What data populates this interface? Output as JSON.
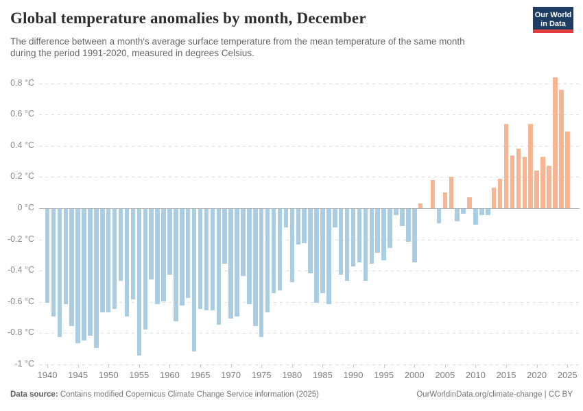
{
  "header": {
    "title": "Global temperature anomalies by month, December",
    "subtitle": "The difference between a month's average surface temperature from the mean temperature of the same month\nduring the period 1991-2020, measured in degrees Celsius.",
    "logo": {
      "line1": "Our World",
      "line2": "in Data",
      "bg_color": "#1d3d63",
      "stripe_color": "#e23b3b"
    }
  },
  "chart_data": {
    "type": "bar",
    "title": "Global temperature anomalies by month, December",
    "xlabel": "",
    "ylabel": "degrees Celsius",
    "x_start": 1940,
    "x_end": 2025,
    "categories": [
      1940,
      1941,
      1942,
      1943,
      1944,
      1945,
      1946,
      1947,
      1948,
      1949,
      1950,
      1951,
      1952,
      1953,
      1954,
      1955,
      1956,
      1957,
      1958,
      1959,
      1960,
      1961,
      1962,
      1963,
      1964,
      1965,
      1966,
      1967,
      1968,
      1969,
      1970,
      1971,
      1972,
      1973,
      1974,
      1975,
      1976,
      1977,
      1978,
      1979,
      1980,
      1981,
      1982,
      1983,
      1984,
      1985,
      1986,
      1987,
      1988,
      1989,
      1990,
      1991,
      1992,
      1993,
      1994,
      1995,
      1996,
      1997,
      1998,
      1999,
      2000,
      2001,
      2002,
      2003,
      2004,
      2005,
      2006,
      2007,
      2008,
      2009,
      2010,
      2011,
      2012,
      2013,
      2014,
      2015,
      2016,
      2017,
      2018,
      2019,
      2020,
      2021,
      2022,
      2023,
      2024,
      2025
    ],
    "values": [
      -0.6,
      -0.69,
      -0.82,
      -0.61,
      -0.75,
      -0.86,
      -0.84,
      -0.81,
      -0.89,
      -0.66,
      -0.66,
      -0.64,
      -0.46,
      -0.69,
      -0.58,
      -0.94,
      -0.77,
      -0.45,
      -0.61,
      -0.59,
      -0.42,
      -0.72,
      -0.62,
      -0.57,
      -0.91,
      -0.64,
      -0.65,
      -0.65,
      -0.74,
      -0.35,
      -0.7,
      -0.69,
      -0.43,
      -0.61,
      -0.75,
      -0.82,
      -0.66,
      -0.54,
      -0.52,
      -0.12,
      -0.47,
      -0.23,
      -0.22,
      -0.41,
      -0.6,
      -0.54,
      -0.61,
      -0.12,
      -0.42,
      -0.46,
      -0.37,
      -0.34,
      -0.46,
      -0.35,
      -0.28,
      -0.33,
      -0.25,
      -0.04,
      -0.11,
      -0.21,
      -0.34,
      0.03,
      0.0,
      0.18,
      -0.09,
      0.1,
      0.2,
      -0.08,
      -0.03,
      0.07,
      -0.1,
      -0.04,
      -0.04,
      0.13,
      0.19,
      0.54,
      0.34,
      0.38,
      0.33,
      0.54,
      0.24,
      0.33,
      0.27,
      0.84,
      0.76,
      0.49
    ],
    "yticks": [
      0.8,
      0.6,
      0.4,
      0.2,
      0,
      -0.2,
      -0.4,
      -0.6,
      -0.8,
      -1
    ],
    "ytick_labels": [
      "0.8 °C",
      "0.6 °C",
      "0.4 °C",
      "0.2 °C",
      "0 °C",
      "-0.2 °C",
      "-0.4 °C",
      "-0.6 °C",
      "-0.8 °C",
      "-1 °C"
    ],
    "xtick_years": [
      1940,
      1945,
      1950,
      1955,
      1960,
      1965,
      1970,
      1975,
      1980,
      1985,
      1990,
      1995,
      2000,
      2005,
      2010,
      2015,
      2020,
      2025
    ],
    "ylim": [
      -1.0,
      0.9
    ],
    "grid": "dashed horizontal",
    "legend": "none",
    "colors": {
      "positive": "#f7b693",
      "negative": "#a9cde3"
    }
  },
  "footer": {
    "source_label": "Data source:",
    "source_text": " Contains modified Copernicus Climate Change Service information (2025)",
    "link_text": "OurWorldinData.org/climate-change | CC BY"
  }
}
